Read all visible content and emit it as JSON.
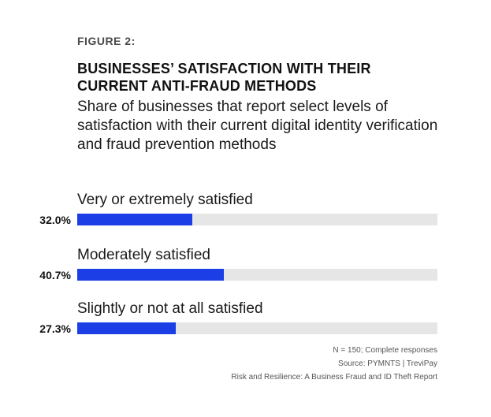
{
  "figure_label": "FIGURE 2:",
  "title": "BUSINESSES’ SATISFACTION WITH THEIR CURRENT ANTI-FRAUD METHODS",
  "subtitle": "Share of businesses that report select levels of satisfaction with their current digital identity verification and fraud prevention methods",
  "colors": {
    "bar": "#1b3ee6",
    "track": "#e6e6e6"
  },
  "chart_data": {
    "type": "bar",
    "orientation": "horizontal",
    "categories": [
      "Very or extremely satisfied",
      "Moderately satisfied",
      "Slightly or not at all satisfied"
    ],
    "values": [
      32.0,
      40.7,
      27.3
    ],
    "value_labels": [
      "32.0%",
      "40.7%",
      "27.3%"
    ],
    "xlim": [
      0,
      100
    ],
    "unit": "%",
    "grid": false
  },
  "notes": {
    "sample": "N = 150; Complete responses",
    "source": "Source: PYMNTS  |  TreviPay",
    "report": "Risk and Resilience: A Business Fraud and ID Theft Report"
  }
}
